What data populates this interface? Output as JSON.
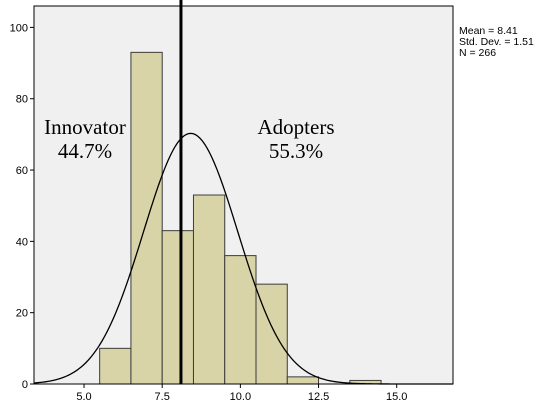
{
  "chart_data": {
    "type": "histogram",
    "title": "",
    "xlabel": "",
    "ylabel": "",
    "xlim": [
      3.4,
      16.8
    ],
    "ylim": [
      0,
      106
    ],
    "x_ticks": [
      5.0,
      7.5,
      10.0,
      12.5,
      15.0
    ],
    "x_tick_labels": [
      "5.0",
      "7.5",
      "10.0",
      "12.5",
      "15.0"
    ],
    "y_ticks": [
      0,
      20,
      40,
      60,
      80,
      100
    ],
    "y_tick_labels": [
      "0",
      "20",
      "40",
      "60",
      "80",
      "100"
    ],
    "bins": [
      {
        "start": 5.5,
        "end": 6.5,
        "count": 10
      },
      {
        "start": 6.5,
        "end": 7.5,
        "count": 93
      },
      {
        "start": 7.5,
        "end": 8.5,
        "count": 43
      },
      {
        "start": 8.5,
        "end": 9.5,
        "count": 53
      },
      {
        "start": 9.5,
        "end": 10.5,
        "count": 36
      },
      {
        "start": 10.5,
        "end": 11.5,
        "count": 28
      },
      {
        "start": 11.5,
        "end": 12.5,
        "count": 2
      },
      {
        "start": 13.5,
        "end": 14.5,
        "count": 1
      }
    ],
    "normal_curve": {
      "mean": 8.41,
      "sd": 1.51,
      "n": 266,
      "bin_width": 1.0
    },
    "cutoff_line_x": 8.1,
    "stats": [
      "Mean = 8.41",
      "Std. Dev. = 1.51",
      "N = 266"
    ],
    "annotations": [
      {
        "label": "Innovator",
        "value": "44.7%"
      },
      {
        "label": "Adopters",
        "value": "55.3%"
      }
    ],
    "grid": false,
    "colors": {
      "bar_fill": "#d9d3a8",
      "bar_stroke": "#3b3b3b",
      "plot_bg": "#f0f0f0",
      "curve": "#000000",
      "cutoff": "#000000"
    }
  }
}
